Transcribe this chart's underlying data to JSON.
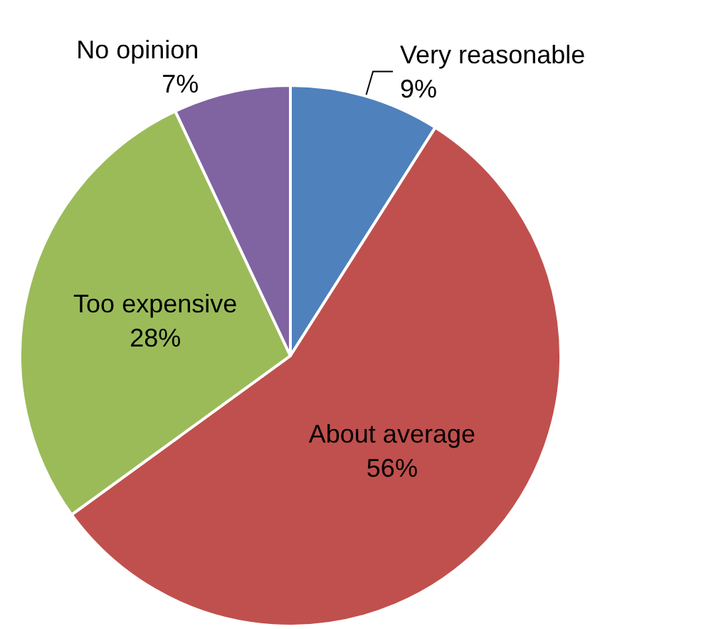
{
  "chart_data": {
    "type": "pie",
    "categories": [
      "Very reasonable",
      "About average",
      "Too expensive",
      "No opinion"
    ],
    "values": [
      9,
      56,
      28,
      7
    ],
    "value_labels": [
      "9%",
      "56%",
      "28%",
      "7%"
    ],
    "colors": [
      "#4f81bd",
      "#c0504d",
      "#9bbb59",
      "#8064a2"
    ],
    "legend": false
  }
}
